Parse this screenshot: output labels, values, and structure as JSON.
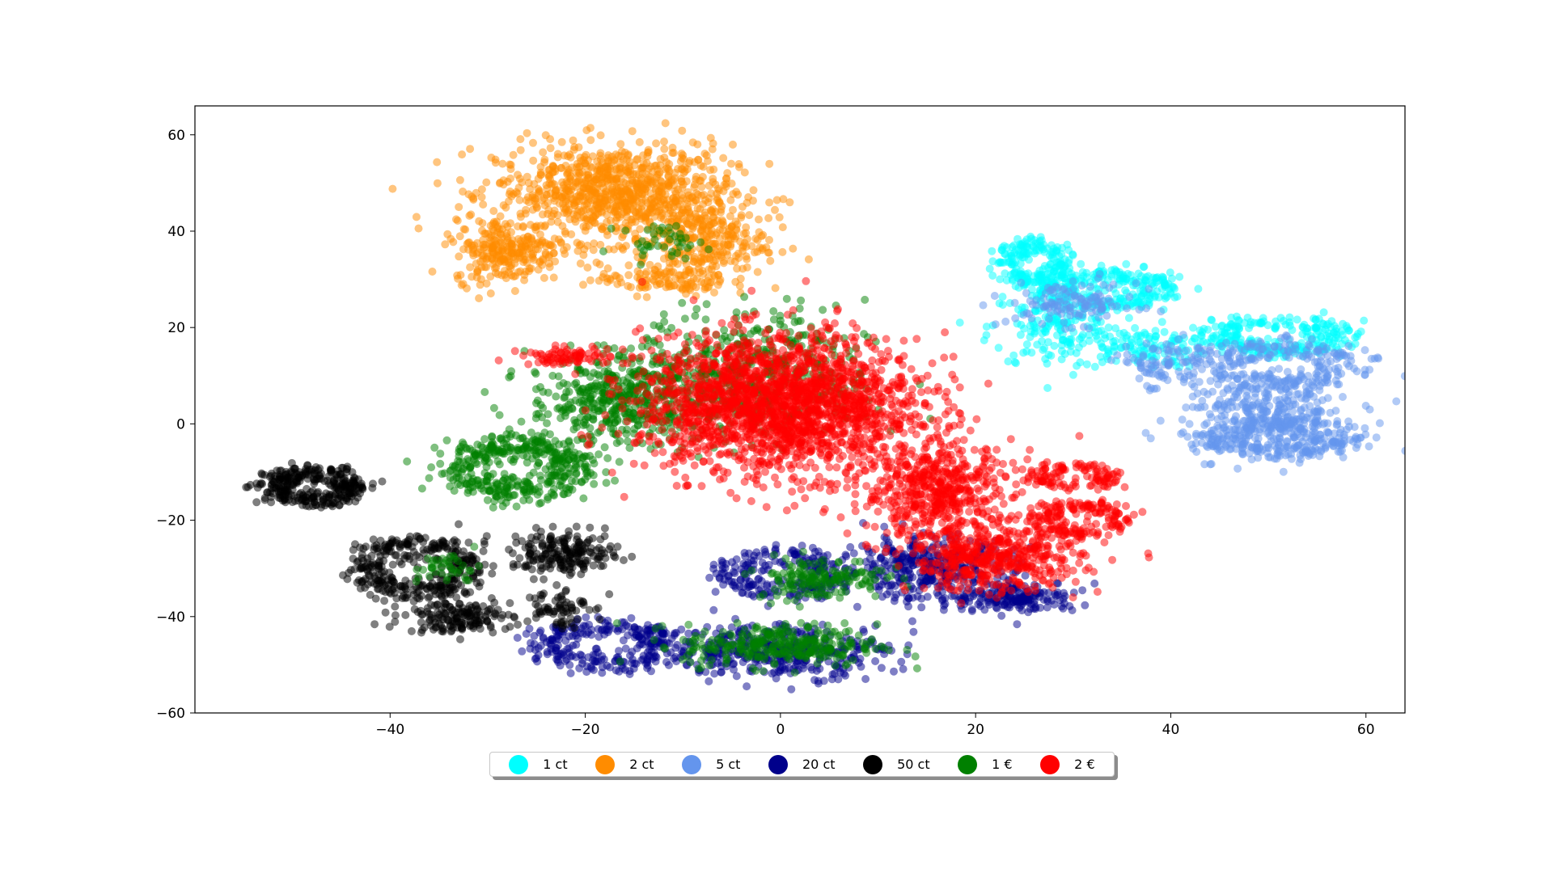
{
  "chart_data": {
    "type": "scatter",
    "title": "",
    "xlabel": "",
    "ylabel": "",
    "xlim": [
      -60,
      64
    ],
    "ylim": [
      -60,
      66
    ],
    "x_ticks": [
      -40,
      -20,
      0,
      20,
      40,
      60
    ],
    "y_ticks": [
      -60,
      -40,
      -20,
      0,
      20,
      40,
      60
    ],
    "x_tick_labels": [
      "−40",
      "−20",
      "0",
      "20",
      "40",
      "60"
    ],
    "y_tick_labels": [
      "−60",
      "−40",
      "−20",
      "0",
      "20",
      "40",
      "60"
    ],
    "grid": false,
    "legend_position": "bottom-center",
    "series": [
      {
        "name": "1 ct",
        "color": "#00ffff",
        "clusters": [
          {
            "shape": "ring",
            "cx": 26,
            "cy": 33,
            "rx": 3,
            "ry": 4,
            "n": 220
          },
          {
            "shape": "ring",
            "cx": 34,
            "cy": 28,
            "rx": 5,
            "ry": 3,
            "n": 240
          },
          {
            "shape": "ring",
            "cx": 51,
            "cy": 18,
            "rx": 6,
            "ry": 3,
            "n": 260
          },
          {
            "shape": "blob",
            "cx": 28,
            "cy": 20,
            "rx": 6,
            "ry": 8,
            "n": 160
          },
          {
            "shape": "blob",
            "cx": 37,
            "cy": 16,
            "rx": 6,
            "ry": 4,
            "n": 120
          }
        ]
      },
      {
        "name": "2 ct",
        "color": "#ff8c00",
        "clusters": [
          {
            "shape": "blob",
            "cx": -17,
            "cy": 48,
            "rx": 11,
            "ry": 9,
            "n": 900
          },
          {
            "shape": "blob",
            "cx": -28,
            "cy": 36,
            "rx": 5,
            "ry": 6,
            "n": 260
          },
          {
            "shape": "blob",
            "cx": -8,
            "cy": 38,
            "rx": 6,
            "ry": 7,
            "n": 260
          },
          {
            "shape": "blob",
            "cx": -12,
            "cy": 30,
            "rx": 6,
            "ry": 3,
            "n": 120
          }
        ]
      },
      {
        "name": "5 ct",
        "color": "#6495ed",
        "clusters": [
          {
            "shape": "ring",
            "cx": 51,
            "cy": 12,
            "rx": 7,
            "ry": 4,
            "n": 240
          },
          {
            "shape": "ring",
            "cx": 51,
            "cy": -3,
            "rx": 6,
            "ry": 3,
            "n": 260
          },
          {
            "shape": "blob",
            "cx": 50,
            "cy": 2,
            "rx": 8,
            "ry": 8,
            "n": 330
          },
          {
            "shape": "blob",
            "cx": 30,
            "cy": 25,
            "rx": 6,
            "ry": 4,
            "n": 120
          },
          {
            "shape": "blob",
            "cx": 39,
            "cy": 12,
            "rx": 4,
            "ry": 5,
            "n": 80
          }
        ]
      },
      {
        "name": "20 ct",
        "color": "#00008b",
        "clusters": [
          {
            "shape": "ring",
            "cx": -18,
            "cy": -46,
            "rx": 6,
            "ry": 4,
            "n": 280
          },
          {
            "shape": "ring",
            "cx": 0,
            "cy": -31,
            "rx": 5,
            "ry": 4,
            "n": 220
          },
          {
            "shape": "blob",
            "cx": 0,
            "cy": -47,
            "rx": 10,
            "ry": 5,
            "n": 380
          },
          {
            "shape": "blob",
            "cx": 15,
            "cy": -30,
            "rx": 8,
            "ry": 6,
            "n": 360
          },
          {
            "shape": "blob",
            "cx": 24,
            "cy": -36,
            "rx": 6,
            "ry": 3,
            "n": 180
          }
        ]
      },
      {
        "name": "50 ct",
        "color": "#000000",
        "clusters": [
          {
            "shape": "ring",
            "cx": -48,
            "cy": -13,
            "rx": 4,
            "ry": 3,
            "n": 320
          },
          {
            "shape": "ring",
            "cx": -37,
            "cy": -30,
            "rx": 5,
            "ry": 5,
            "n": 340
          },
          {
            "shape": "blob",
            "cx": -22,
            "cy": -27,
            "rx": 5,
            "ry": 4,
            "n": 200
          },
          {
            "shape": "blob",
            "cx": -33,
            "cy": -40,
            "rx": 5,
            "ry": 3,
            "n": 160
          },
          {
            "shape": "blob",
            "cx": -23,
            "cy": -38,
            "rx": 3,
            "ry": 4,
            "n": 70
          }
        ]
      },
      {
        "name": "1 €",
        "color": "#008000",
        "clusters": [
          {
            "shape": "ring",
            "cx": -27,
            "cy": -9,
            "rx": 6,
            "ry": 5,
            "n": 420
          },
          {
            "shape": "blob",
            "cx": -17,
            "cy": 5,
            "rx": 8,
            "ry": 8,
            "n": 420
          },
          {
            "shape": "blob",
            "cx": -3,
            "cy": 10,
            "rx": 11,
            "ry": 12,
            "n": 520
          },
          {
            "shape": "blob",
            "cx": 0,
            "cy": -46,
            "rx": 9,
            "ry": 4,
            "n": 300
          },
          {
            "shape": "blob",
            "cx": 4,
            "cy": -32,
            "rx": 6,
            "ry": 4,
            "n": 160
          },
          {
            "shape": "blob",
            "cx": -12,
            "cy": 38,
            "rx": 4,
            "ry": 3,
            "n": 40
          },
          {
            "shape": "blob",
            "cx": -34,
            "cy": -30,
            "rx": 3,
            "ry": 3,
            "n": 40
          }
        ]
      },
      {
        "name": "2 €",
        "color": "#ff0000",
        "clusters": [
          {
            "shape": "blob",
            "cx": 0,
            "cy": 4,
            "rx": 13,
            "ry": 13,
            "n": 2000
          },
          {
            "shape": "blob",
            "cx": 16,
            "cy": -14,
            "rx": 7,
            "ry": 9,
            "n": 520
          },
          {
            "shape": "blob",
            "cx": 22,
            "cy": -28,
            "rx": 8,
            "ry": 6,
            "n": 460
          },
          {
            "shape": "ring",
            "cx": 31,
            "cy": -20,
            "rx": 4,
            "ry": 3,
            "n": 180
          },
          {
            "shape": "ring",
            "cx": 30,
            "cy": -11,
            "rx": 4,
            "ry": 2,
            "n": 120
          },
          {
            "shape": "blob",
            "cx": -22,
            "cy": 14,
            "rx": 4,
            "ry": 1.6,
            "n": 80
          }
        ]
      }
    ]
  }
}
